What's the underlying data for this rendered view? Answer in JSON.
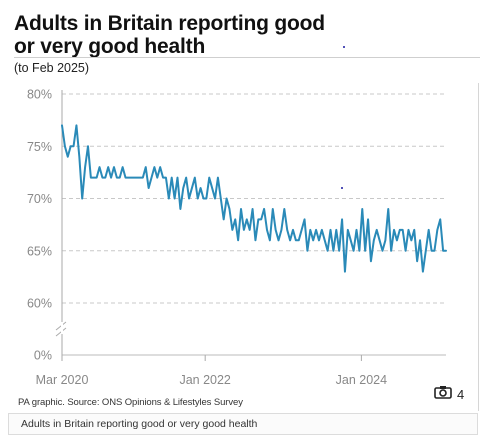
{
  "title": "Adults in Britain reporting good or very good health",
  "subtitle": "(to Feb 2025)",
  "source": "PA graphic. Source: ONS Opinions & Lifestyles Survey",
  "caption": "Adults in Britain reporting good or very good health",
  "camera": {
    "icon": "camera-icon",
    "count": "4"
  },
  "colors": {
    "line": "#2a8ab8",
    "grid": "#c8c8c8",
    "axis_text": "#888888"
  },
  "chart_data": {
    "type": "line",
    "title": "Adults in Britain reporting good or very good health",
    "subtitle": "(to Feb 2025)",
    "xlabel": "",
    "ylabel": "",
    "y_ticks": [
      "80%",
      "75%",
      "70%",
      "65%",
      "60%",
      "0%"
    ],
    "y_tick_values": [
      80,
      75,
      70,
      65,
      60,
      0
    ],
    "y_axis_break": true,
    "x_ticks": [
      "Mar 2020",
      "Jan 2022",
      "Jan 2024"
    ],
    "x_range": [
      "Mar 2020",
      "Feb 2025"
    ],
    "ylim": [
      60,
      80
    ],
    "grid": "horizontal dashed",
    "series": [
      {
        "name": "",
        "values": [
          77,
          75,
          74,
          75,
          75,
          77,
          74,
          70,
          73,
          75,
          72,
          72,
          72,
          73,
          72,
          72,
          73,
          72,
          73,
          72,
          72,
          73,
          72,
          72,
          72,
          72,
          72,
          72,
          72,
          73,
          71,
          72,
          73,
          72,
          73,
          72,
          72,
          70,
          72,
          70,
          72,
          69,
          71,
          72,
          70,
          71,
          72,
          70,
          71,
          70,
          70,
          72,
          71,
          70,
          72,
          70,
          68,
          70,
          69,
          67,
          68,
          66,
          69,
          67,
          68,
          67,
          69,
          66,
          68,
          68,
          69,
          67,
          66,
          69,
          67,
          66,
          67,
          69,
          67,
          66,
          67,
          66,
          66,
          67,
          68,
          65,
          67,
          66,
          67,
          66,
          67,
          66,
          65,
          67,
          65,
          67,
          65,
          68,
          63,
          67,
          66,
          65,
          67,
          65,
          69,
          65,
          68,
          64,
          66,
          67,
          66,
          65,
          66,
          69,
          65,
          67,
          66,
          67,
          67,
          65,
          67,
          66,
          67,
          64,
          66,
          63,
          65,
          67,
          65,
          65,
          67,
          68,
          65,
          65
        ]
      }
    ]
  }
}
